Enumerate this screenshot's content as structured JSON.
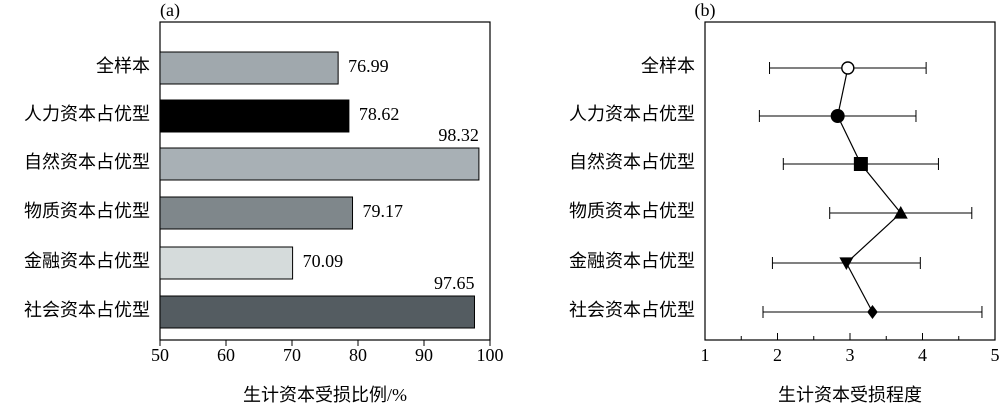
{
  "chart_data": [
    {
      "type": "bar",
      "title": "(a)",
      "x_label": "生计资本受损比例/%",
      "categories": [
        "全样本",
        "人力资本占优型",
        "自然资本占优型",
        "物质资本占优型",
        "金融资本占优型",
        "社会资本占优型"
      ],
      "values": [
        76.99,
        78.62,
        98.32,
        79.17,
        70.09,
        97.65
      ],
      "colors": [
        "#a0a8ad",
        "#000000",
        "#a8b0b5",
        "#7f878b",
        "#d5dbdb",
        "#545c61"
      ],
      "xlim": [
        50,
        100
      ],
      "xticks": [
        50,
        60,
        70,
        80,
        90,
        100
      ]
    },
    {
      "type": "errorbar",
      "title": "(b)",
      "x_label": "生计资本受损程度",
      "categories": [
        "全样本",
        "人力资本占优型",
        "自然资本占优型",
        "物质资本占优型",
        "金融资本占优型",
        "社会资本占优型"
      ],
      "values": [
        2.97,
        2.83,
        3.15,
        3.7,
        2.95,
        3.31
      ],
      "errors": [
        1.08,
        1.08,
        1.07,
        0.98,
        1.02,
        1.51
      ],
      "markers": [
        "open-circle",
        "circle",
        "square",
        "triangle-up",
        "triangle-down",
        "diamond"
      ],
      "color": "#000000",
      "xlim": [
        1,
        5
      ],
      "xticks": [
        1,
        2,
        3,
        4,
        5
      ]
    }
  ]
}
